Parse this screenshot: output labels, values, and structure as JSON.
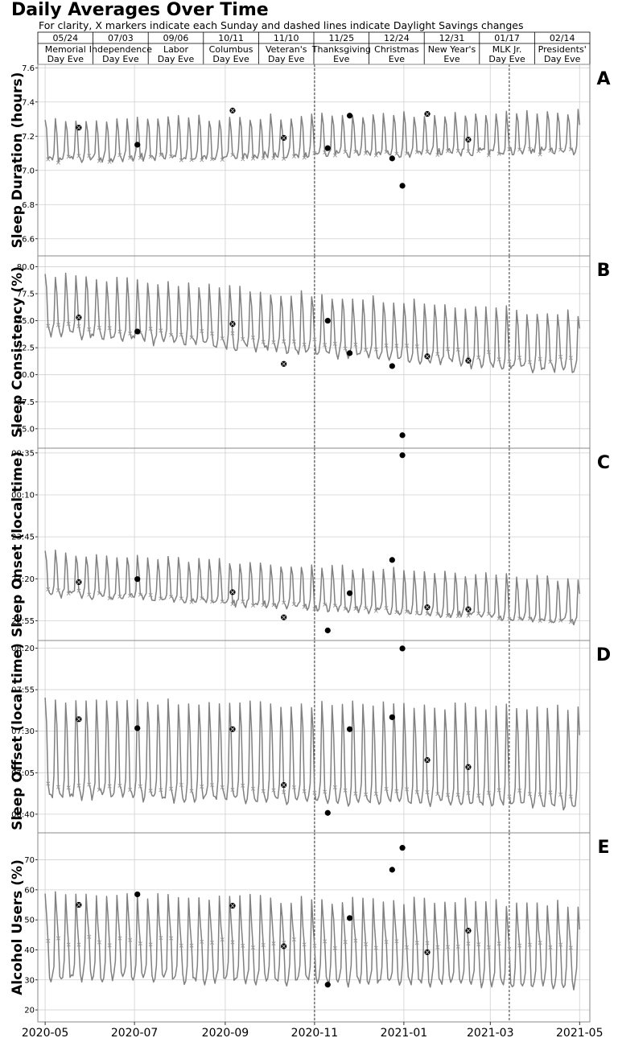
{
  "title": "Daily Averages Over Time",
  "subtitle": "For clarity, X markers indicate each Sunday and dashed lines indicate Daylight Savings changes",
  "colors": {
    "line": "#808080",
    "marker": "#000000",
    "grid": "#d0d0d0",
    "axes": "#888888"
  },
  "holidays": [
    {
      "date_label": "05/24",
      "name_line1": "Memorial",
      "name_line2": "Day Eve",
      "date": "2020-05-24"
    },
    {
      "date_label": "07/03",
      "name_line1": "Independence",
      "name_line2": "Day Eve",
      "date": "2020-07-03"
    },
    {
      "date_label": "09/06",
      "name_line1": "Labor",
      "name_line2": "Day Eve",
      "date": "2020-09-06"
    },
    {
      "date_label": "10/11",
      "name_line1": "Columbus",
      "name_line2": "Day Eve",
      "date": "2020-10-11"
    },
    {
      "date_label": "11/10",
      "name_line1": "Veteran's",
      "name_line2": "Day Eve",
      "date": "2020-11-10"
    },
    {
      "date_label": "11/25",
      "name_line1": "Thanksgiving",
      "name_line2": "Eve",
      "date": "2020-11-25"
    },
    {
      "date_label": "12/24",
      "name_line1": "Christmas",
      "name_line2": "Eve",
      "date": "2020-12-24"
    },
    {
      "date_label": "12/31",
      "name_line1": "New Year's",
      "name_line2": "Eve",
      "date": "2020-12-31"
    },
    {
      "date_label": "01/17",
      "name_line1": "MLK Jr.",
      "name_line2": "Day Eve",
      "date": "2021-01-17"
    },
    {
      "date_label": "02/14",
      "name_line1": "Presidents'",
      "name_line2": "Day Eve",
      "date": "2021-02-14"
    }
  ],
  "chart_data": {
    "type": "line",
    "x_range": [
      "2020-04-26",
      "2021-05-08"
    ],
    "x_ticks": [
      {
        "label": "2020-05",
        "date": "2020-05-01"
      },
      {
        "label": "2020-07",
        "date": "2020-07-01"
      },
      {
        "label": "2020-09",
        "date": "2020-09-01"
      },
      {
        "label": "2020-11",
        "date": "2020-11-01"
      },
      {
        "label": "2021-01",
        "date": "2021-01-01"
      },
      {
        "label": "2021-03",
        "date": "2021-03-01"
      },
      {
        "label": "2021-05",
        "date": "2021-05-01"
      }
    ],
    "x_start": "2020-05-01",
    "x_end": "2021-05-01",
    "dst_dates": [
      "2020-11-01",
      "2021-03-14"
    ],
    "grid": true,
    "panels": [
      {
        "label": "A",
        "ylabel": "Sleep Duration (hours)",
        "ylim": [
          6.5,
          7.62
        ],
        "yticks": [
          6.6,
          6.8,
          7.0,
          7.2,
          7.4,
          7.6
        ],
        "ytick_labels": [
          "6.6",
          "6.8",
          "7.0",
          "7.2",
          "7.4",
          "7.6"
        ],
        "baseline": 7.06,
        "trend": 0.05,
        "amp_sun": -0.02,
        "peak": 0.23,
        "noise": 0.02,
        "holiday_values": [
          7.25,
          7.15,
          7.35,
          7.19,
          7.13,
          7.32,
          7.07,
          6.91,
          7.33,
          7.18
        ],
        "holiday_crossed": [
          true,
          false,
          true,
          true,
          false,
          false,
          false,
          false,
          true,
          true
        ]
      },
      {
        "label": "B",
        "ylabel": "Sleep Consistency (%)",
        "ylim": [
          63.2,
          81.0
        ],
        "yticks": [
          65.0,
          67.5,
          70.0,
          72.5,
          75.0,
          77.5,
          80.0
        ],
        "ytick_labels": [
          "65.0",
          "67.5",
          "70.0",
          "72.5",
          "75.0",
          "77.5",
          "80.0"
        ],
        "baseline": 73.8,
        "trend": -3.6,
        "amp_sun": 0.4,
        "peak": 5.4,
        "noise": 0.4,
        "holiday_values": [
          75.3,
          74.0,
          74.7,
          71.0,
          75.0,
          72.0,
          70.8,
          64.4,
          71.7,
          71.3
        ],
        "holiday_crossed": [
          true,
          false,
          true,
          true,
          false,
          false,
          false,
          false,
          true,
          true
        ]
      },
      {
        "label": "C",
        "ylabel": "Sleep Onset (local time)",
        "ylim": [
          22.72,
          24.63
        ],
        "yticks": [
          22.9167,
          23.3333,
          23.75,
          24.1667,
          24.5833
        ],
        "ytick_labels": [
          "22:55",
          "23:20",
          "23:45",
          "00:10",
          "00:35"
        ],
        "baseline": 23.18,
        "trend": -0.28,
        "amp_sun": -0.02,
        "peak": 0.42,
        "noise": 0.03,
        "holiday_values": [
          23.3,
          23.33,
          23.2,
          22.95,
          22.82,
          23.19,
          23.52,
          24.56,
          23.05,
          23.03
        ],
        "holiday_crossed": [
          true,
          false,
          true,
          true,
          false,
          false,
          false,
          false,
          true,
          true
        ]
      },
      {
        "label": "D",
        "ylabel": "Sleep Offset (local time)",
        "ylim": [
          6.48,
          8.41
        ],
        "yticks": [
          6.6667,
          7.0833,
          7.5,
          7.9167,
          8.3333
        ],
        "ytick_labels": [
          "06:40",
          "07:05",
          "07:30",
          "07:55",
          "08:20"
        ],
        "baseline": 6.84,
        "trend": -0.1,
        "amp_sun": 0.02,
        "peak": 0.98,
        "noise": 0.04,
        "holiday_values": [
          7.62,
          7.53,
          7.52,
          6.96,
          6.68,
          7.52,
          7.64,
          8.33,
          7.21,
          7.14
        ],
        "holiday_crossed": [
          true,
          false,
          true,
          true,
          false,
          false,
          false,
          false,
          true,
          true
        ]
      },
      {
        "label": "E",
        "ylabel": "Alcohol Users (%)",
        "ylim": [
          16.0,
          79.0
        ],
        "yticks": [
          20,
          30,
          40,
          50,
          60,
          70
        ],
        "ytick_labels": [
          "20",
          "30",
          "40",
          "50",
          "60",
          "70"
        ],
        "baseline": 30.5,
        "trend": -2.5,
        "amp_sun": 10.0,
        "peak": 27.5,
        "noise": 1.5,
        "holiday_values": [
          55.0,
          58.5,
          54.7,
          41.2,
          28.4,
          50.6,
          66.7,
          74.0,
          39.2,
          46.4
        ],
        "holiday_crossed": [
          true,
          false,
          true,
          true,
          false,
          false,
          false,
          false,
          true,
          true
        ]
      }
    ]
  }
}
